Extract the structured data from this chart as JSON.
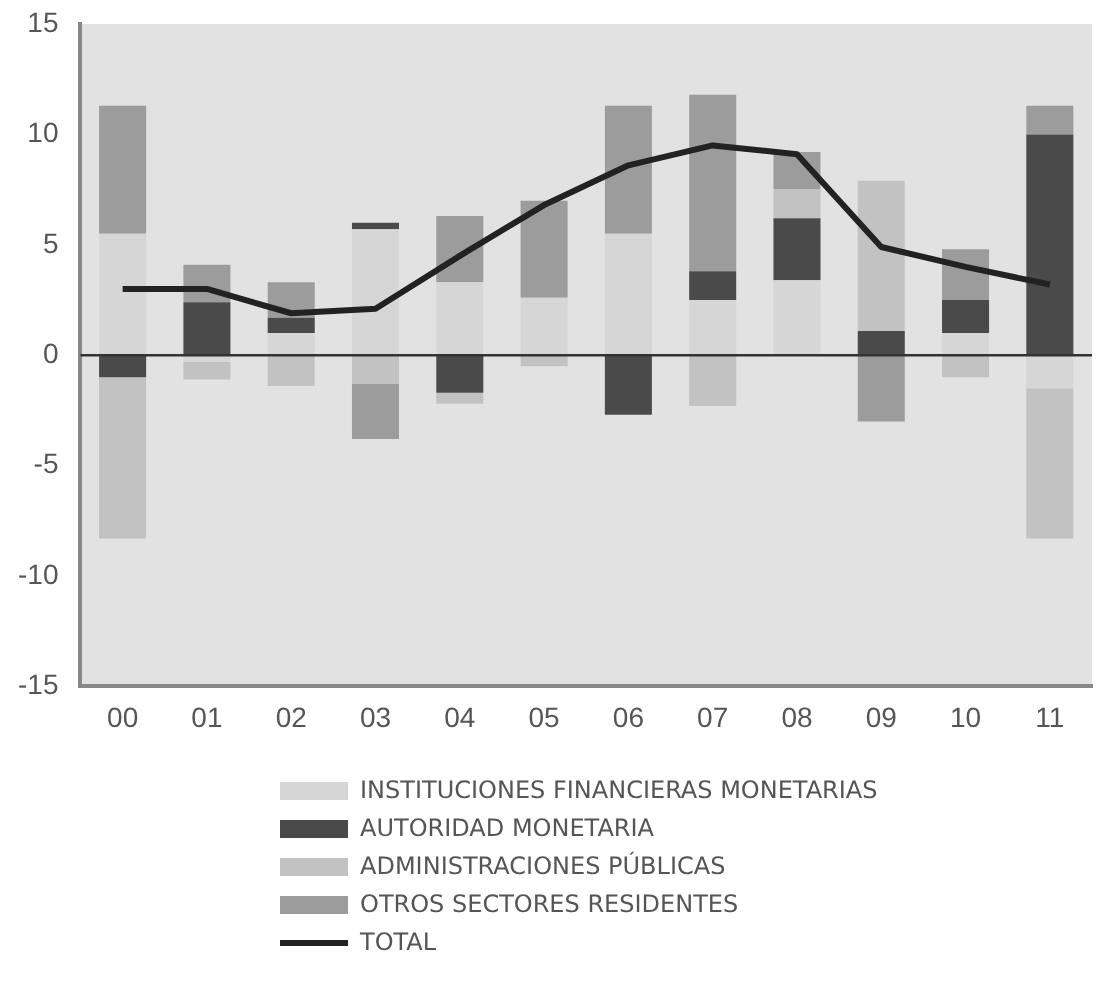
{
  "chart_data": {
    "type": "bar",
    "stacked": true,
    "categories": [
      "00",
      "01",
      "02",
      "03",
      "04",
      "05",
      "06",
      "07",
      "08",
      "09",
      "10",
      "11"
    ],
    "series": [
      {
        "name": "INSTITUCIONES FINANCIERAS MONETARIAS",
        "color": "#d6d6d6",
        "values": [
          5.5,
          -0.3,
          1.0,
          5.7,
          3.3,
          2.6,
          5.5,
          2.5,
          3.4,
          null,
          1.0,
          -1.5
        ]
      },
      {
        "name": "AUTORIDAD MONETARIA",
        "color": "#4a4a4a",
        "values": [
          -1.0,
          2.4,
          0.7,
          0.3,
          -1.7,
          null,
          -2.7,
          1.3,
          2.8,
          1.1,
          1.5,
          10.0
        ]
      },
      {
        "name": "ADMINISTRACIONES PÚBLICAS",
        "color": "#c2c2c2",
        "values": [
          -7.3,
          -0.8,
          -1.4,
          -1.3,
          -0.5,
          -0.5,
          null,
          -2.3,
          1.3,
          6.8,
          -1.0,
          -6.8
        ]
      },
      {
        "name": "OTROS SECTORES RESIDENTES",
        "color": "#9c9c9c",
        "values": [
          5.8,
          1.7,
          1.6,
          -2.5,
          3.0,
          4.4,
          5.8,
          8.0,
          1.7,
          -3.0,
          2.3,
          1.3
        ]
      },
      {
        "name": "TOTAL",
        "type": "line",
        "color": "#222222",
        "values": [
          3.0,
          3.0,
          1.9,
          2.1,
          4.5,
          6.8,
          8.6,
          9.5,
          9.1,
          4.9,
          4.0,
          3.2
        ]
      }
    ],
    "ylim": [
      -15,
      15
    ],
    "yticks": [
      -15,
      -10,
      -5,
      0,
      5,
      10,
      15
    ],
    "legend": "bottom",
    "marker": "none",
    "ref_lines": [
      {
        "axis": "y",
        "value": 0,
        "color": "#333333"
      }
    ]
  }
}
